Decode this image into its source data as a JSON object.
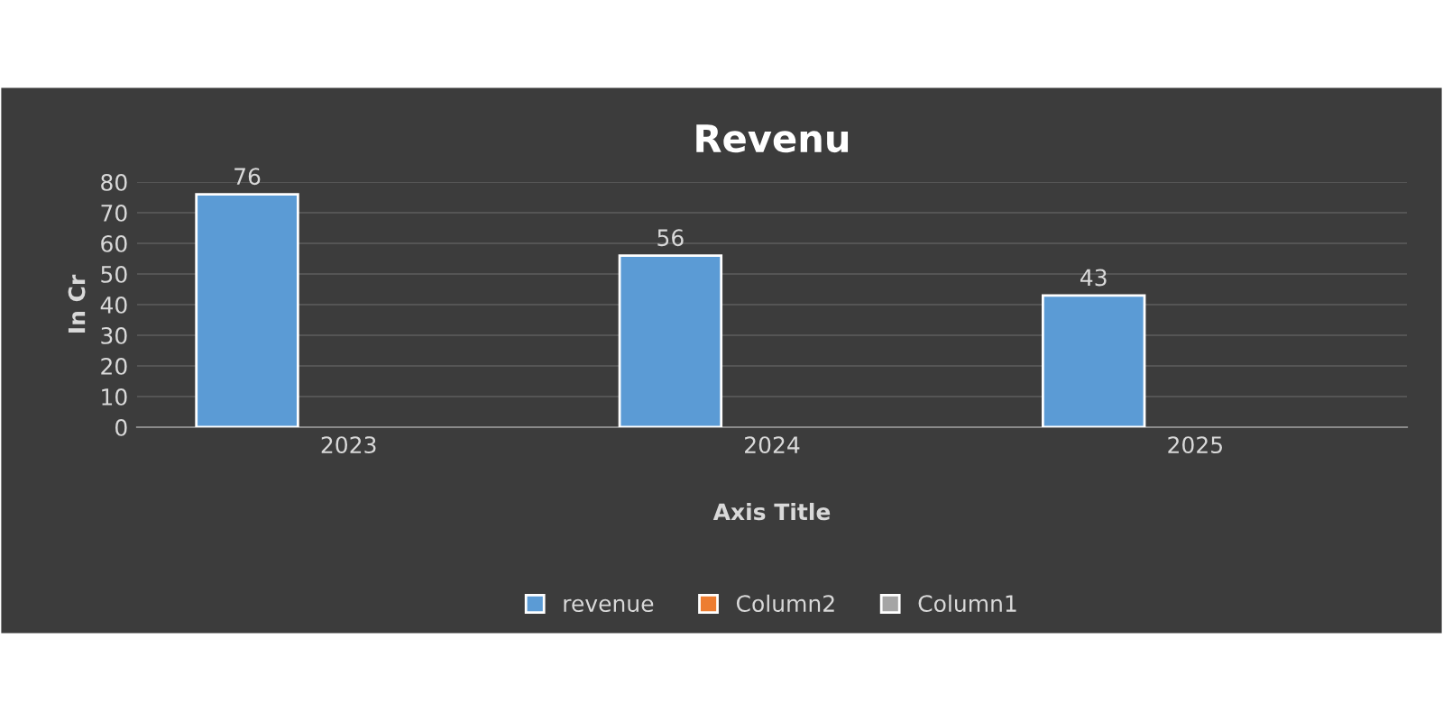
{
  "chart_data": {
    "type": "bar",
    "title": "Revenu",
    "xlabel": "Axis Title",
    "ylabel": "In Cr",
    "categories": [
      "2023",
      "2024",
      "2025"
    ],
    "series": [
      {
        "name": "revenue",
        "color": "#5b9bd5",
        "values": [
          76,
          56,
          43
        ]
      },
      {
        "name": "Column2",
        "color": "#ed7d31",
        "values": [
          null,
          null,
          null
        ]
      },
      {
        "name": "Column1",
        "color": "#a5a5a5",
        "values": [
          null,
          null,
          null
        ]
      }
    ],
    "ylim": [
      0,
      80
    ],
    "yticks": [
      0,
      10,
      20,
      30,
      40,
      50,
      60,
      70,
      80
    ],
    "grid": "y",
    "legend": "bottom",
    "data_labels": true
  }
}
